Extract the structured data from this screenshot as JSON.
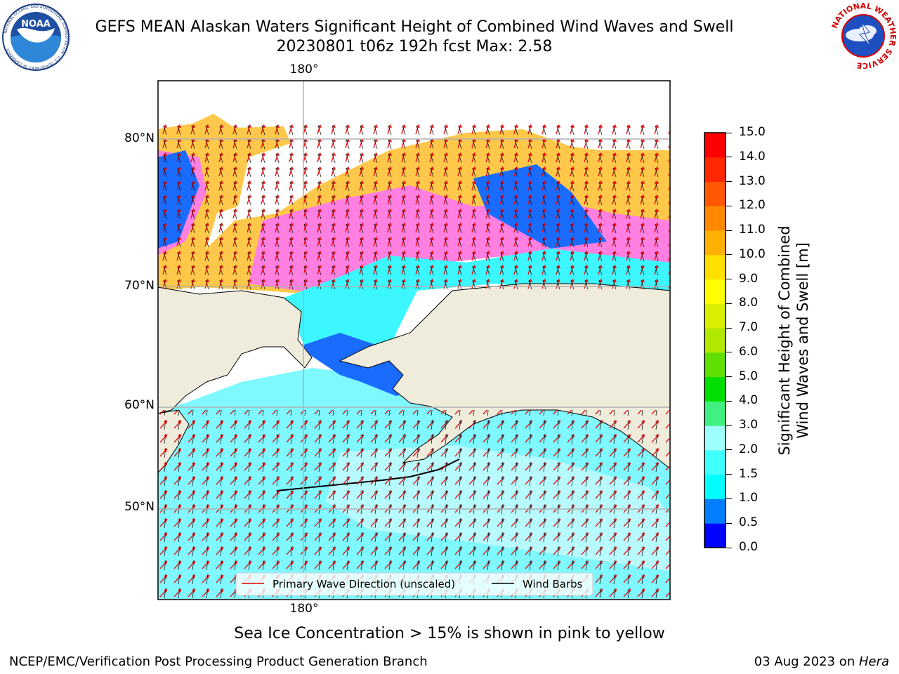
{
  "header": {
    "title_line1": "GEFS MEAN Alaskan Waters Significant Height of Combined Wind Waves and Swell",
    "title_line2": "20230801 t06z 192h fcst   Max: 2.58"
  },
  "logos": {
    "noaa_label": "NOAA",
    "noaa_ring_text": "NATIONAL OCEANIC AND ATMOSPHERIC ADMINISTRATION · U.S. DEPARTMENT OF COMMERCE",
    "nws_ring_text": "NATIONAL WEATHER SERVICE"
  },
  "map": {
    "lon_label_top": "180°",
    "lon_label_bottom": "180°",
    "lat_labels": [
      "80°N",
      "70°N",
      "60°N",
      "50°N"
    ],
    "land_color": "#efecdc",
    "ocean_color": "#7ff8ff"
  },
  "legend": {
    "wave_label": "Primary Wave Direction (unscaled)",
    "wind_label": "Wind Barbs",
    "wave_color": "#e30000",
    "wind_color": "#000000"
  },
  "colorbar": {
    "title_line1": "Significant Height of Combined",
    "title_line2": "Wind Waves and Swell [m]",
    "ticks": [
      "0.0",
      "0.5",
      "1.0",
      "1.5",
      "2.0",
      "3.0",
      "4.0",
      "5.0",
      "6.0",
      "7.0",
      "8.0",
      "9.0",
      "10.0",
      "11.0",
      "12.0",
      "13.0",
      "14.0",
      "15.0"
    ],
    "colors": [
      "#0000ff",
      "#0080ff",
      "#00ffff",
      "#40ffff",
      "#a0ffff",
      "#40f080",
      "#00e000",
      "#60e000",
      "#b0e800",
      "#d8f000",
      "#ffff00",
      "#ffe000",
      "#ffb000",
      "#ff8800",
      "#ff5800",
      "#ff2800",
      "#ff0000"
    ]
  },
  "footer": {
    "note": "Sea Ice Concentration > 15% is shown in pink to yellow",
    "left": "NCEP/EMC/Verification Post Processing Product Generation Branch",
    "right_date": "03 Aug 2023 on ",
    "right_host": "Hera"
  }
}
